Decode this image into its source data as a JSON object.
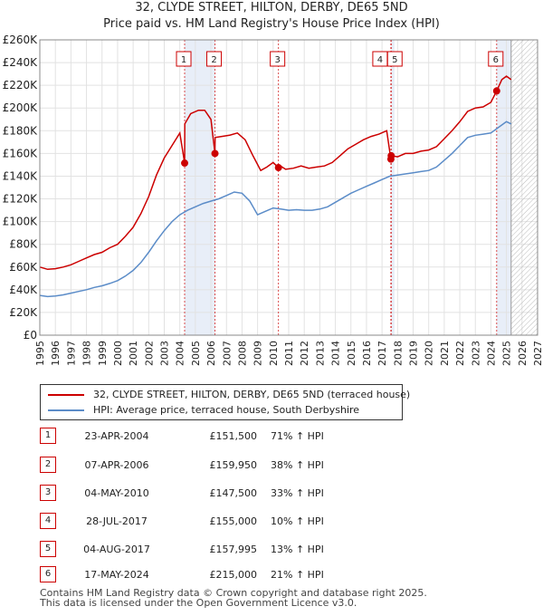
{
  "chart_data": {
    "type": "line",
    "title": "32, CLYDE STREET, HILTON, DERBY, DE65 5ND",
    "subtitle": "Price paid vs. HM Land Registry's House Price Index (HPI)",
    "xlim": [
      1995,
      2027
    ],
    "ylim": [
      0,
      260000
    ],
    "x_ticks": [
      1995,
      1996,
      1997,
      1998,
      1999,
      2000,
      2001,
      2002,
      2003,
      2004,
      2005,
      2006,
      2007,
      2008,
      2009,
      2010,
      2011,
      2012,
      2013,
      2014,
      2015,
      2016,
      2017,
      2018,
      2019,
      2020,
      2021,
      2022,
      2023,
      2024,
      2025,
      2026,
      2027
    ],
    "y_ticks": [
      0,
      20000,
      40000,
      60000,
      80000,
      100000,
      120000,
      140000,
      160000,
      180000,
      200000,
      220000,
      240000,
      260000
    ],
    "y_tick_labels": [
      "£0",
      "£20K",
      "£40K",
      "£60K",
      "£80K",
      "£100K",
      "£120K",
      "£140K",
      "£160K",
      "£180K",
      "£200K",
      "£220K",
      "£240K",
      "£260K"
    ],
    "future_hatch_start": 2025.3,
    "series": [
      {
        "name": "32, CLYDE STREET, HILTON, DERBY, DE65 5ND (terraced house)",
        "color": "#cc0000",
        "points": [
          [
            1995.0,
            60000
          ],
          [
            1995.5,
            58000
          ],
          [
            1996.0,
            58500
          ],
          [
            1996.5,
            60000
          ],
          [
            1997.0,
            62000
          ],
          [
            1997.5,
            65000
          ],
          [
            1998.0,
            68000
          ],
          [
            1998.5,
            71000
          ],
          [
            1999.0,
            73000
          ],
          [
            1999.5,
            77000
          ],
          [
            2000.0,
            80000
          ],
          [
            2000.5,
            87000
          ],
          [
            2001.0,
            95000
          ],
          [
            2001.5,
            107000
          ],
          [
            2002.0,
            122000
          ],
          [
            2002.5,
            141000
          ],
          [
            2003.0,
            156000
          ],
          [
            2003.5,
            167000
          ],
          [
            2004.0,
            178000
          ],
          [
            2004.31,
            151500
          ],
          [
            2004.32,
            186000
          ],
          [
            2004.7,
            195000
          ],
          [
            2005.2,
            198000
          ],
          [
            2005.6,
            198000
          ],
          [
            2006.0,
            190000
          ],
          [
            2006.26,
            159950
          ],
          [
            2006.27,
            174000
          ],
          [
            2006.7,
            175000
          ],
          [
            2007.2,
            176000
          ],
          [
            2007.7,
            178000
          ],
          [
            2008.2,
            172000
          ],
          [
            2008.7,
            158000
          ],
          [
            2009.2,
            145000
          ],
          [
            2009.6,
            148000
          ],
          [
            2010.0,
            152000
          ],
          [
            2010.34,
            147500
          ],
          [
            2010.35,
            150000
          ],
          [
            2010.8,
            146000
          ],
          [
            2011.3,
            147000
          ],
          [
            2011.8,
            149000
          ],
          [
            2012.3,
            147000
          ],
          [
            2012.8,
            148000
          ],
          [
            2013.3,
            149000
          ],
          [
            2013.8,
            152000
          ],
          [
            2014.3,
            158000
          ],
          [
            2014.8,
            164000
          ],
          [
            2015.3,
            168000
          ],
          [
            2015.8,
            172000
          ],
          [
            2016.3,
            175000
          ],
          [
            2016.8,
            177000
          ],
          [
            2017.3,
            180000
          ],
          [
            2017.57,
            155000
          ],
          [
            2017.59,
            157995
          ],
          [
            2018.0,
            157000
          ],
          [
            2018.5,
            160000
          ],
          [
            2019.0,
            160000
          ],
          [
            2019.5,
            162000
          ],
          [
            2020.0,
            163000
          ],
          [
            2020.5,
            166000
          ],
          [
            2021.0,
            173000
          ],
          [
            2021.5,
            180000
          ],
          [
            2022.0,
            188000
          ],
          [
            2022.5,
            197000
          ],
          [
            2023.0,
            200000
          ],
          [
            2023.5,
            201000
          ],
          [
            2024.0,
            205000
          ],
          [
            2024.37,
            215000
          ],
          [
            2024.7,
            225000
          ],
          [
            2025.0,
            228000
          ],
          [
            2025.3,
            225000
          ]
        ]
      },
      {
        "name": "HPI: Average price, terraced house, South Derbyshire",
        "color": "#5b8cc8",
        "points": [
          [
            1995.0,
            35000
          ],
          [
            1995.5,
            34000
          ],
          [
            1996.0,
            34500
          ],
          [
            1996.5,
            35500
          ],
          [
            1997.0,
            37000
          ],
          [
            1997.5,
            38500
          ],
          [
            1998.0,
            40000
          ],
          [
            1998.5,
            42000
          ],
          [
            1999.0,
            43500
          ],
          [
            1999.5,
            45500
          ],
          [
            2000.0,
            48000
          ],
          [
            2000.5,
            52000
          ],
          [
            2001.0,
            57000
          ],
          [
            2001.5,
            64000
          ],
          [
            2002.0,
            73000
          ],
          [
            2002.5,
            83000
          ],
          [
            2003.0,
            92000
          ],
          [
            2003.5,
            100000
          ],
          [
            2004.0,
            106000
          ],
          [
            2004.5,
            110000
          ],
          [
            2005.0,
            113000
          ],
          [
            2005.5,
            116000
          ],
          [
            2006.0,
            118000
          ],
          [
            2006.5,
            120000
          ],
          [
            2007.0,
            123000
          ],
          [
            2007.5,
            126000
          ],
          [
            2008.0,
            125000
          ],
          [
            2008.5,
            118000
          ],
          [
            2009.0,
            106000
          ],
          [
            2009.5,
            109000
          ],
          [
            2010.0,
            112000
          ],
          [
            2010.5,
            111000
          ],
          [
            2011.0,
            110000
          ],
          [
            2011.5,
            110500
          ],
          [
            2012.0,
            110000
          ],
          [
            2012.5,
            110000
          ],
          [
            2013.0,
            111000
          ],
          [
            2013.5,
            113000
          ],
          [
            2014.0,
            117000
          ],
          [
            2014.5,
            121000
          ],
          [
            2015.0,
            125000
          ],
          [
            2015.5,
            128000
          ],
          [
            2016.0,
            131000
          ],
          [
            2016.5,
            134000
          ],
          [
            2017.0,
            137000
          ],
          [
            2017.5,
            140000
          ],
          [
            2018.0,
            141000
          ],
          [
            2018.5,
            142000
          ],
          [
            2019.0,
            143000
          ],
          [
            2019.5,
            144000
          ],
          [
            2020.0,
            145000
          ],
          [
            2020.5,
            148000
          ],
          [
            2021.0,
            154000
          ],
          [
            2021.5,
            160000
          ],
          [
            2022.0,
            167000
          ],
          [
            2022.5,
            174000
          ],
          [
            2023.0,
            176000
          ],
          [
            2023.5,
            177000
          ],
          [
            2024.0,
            178000
          ],
          [
            2024.5,
            183000
          ],
          [
            2025.0,
            188000
          ],
          [
            2025.3,
            186000
          ]
        ]
      }
    ],
    "markers": [
      {
        "label": "1",
        "x": 2004.31,
        "y": 151500
      },
      {
        "label": "2",
        "x": 2006.26,
        "y": 159950
      },
      {
        "label": "3",
        "x": 2010.34,
        "y": 147500
      },
      {
        "label": "4",
        "x": 2017.57,
        "y": 155000
      },
      {
        "label": "5",
        "x": 2017.59,
        "y": 157995
      },
      {
        "label": "6",
        "x": 2024.37,
        "y": 215000
      }
    ],
    "shaded_periods": [
      [
        2004.31,
        2006.26
      ],
      [
        2017.59,
        2017.8
      ],
      [
        2024.37,
        2025.3
      ]
    ]
  },
  "legend": {
    "property_label": "32, CLYDE STREET, HILTON, DERBY, DE65 5ND (terraced house)",
    "hpi_label": "HPI: Average price, terraced house, South Derbyshire"
  },
  "transactions": [
    {
      "num": "1",
      "date": "23-APR-2004",
      "price": "£151,500",
      "hpi": "71% ↑ HPI"
    },
    {
      "num": "2",
      "date": "07-APR-2006",
      "price": "£159,950",
      "hpi": "38% ↑ HPI"
    },
    {
      "num": "3",
      "date": "04-MAY-2010",
      "price": "£147,500",
      "hpi": "33% ↑ HPI"
    },
    {
      "num": "4",
      "date": "28-JUL-2017",
      "price": "£155,000",
      "hpi": "10% ↑ HPI"
    },
    {
      "num": "5",
      "date": "04-AUG-2017",
      "price": "£157,995",
      "hpi": "13% ↑ HPI"
    },
    {
      "num": "6",
      "date": "17-MAY-2024",
      "price": "£215,000",
      "hpi": "21% ↑ HPI"
    }
  ],
  "footer": {
    "line1": "Contains HM Land Registry data © Crown copyright and database right 2025.",
    "line2": "This data is licensed under the Open Government Licence v3.0."
  }
}
